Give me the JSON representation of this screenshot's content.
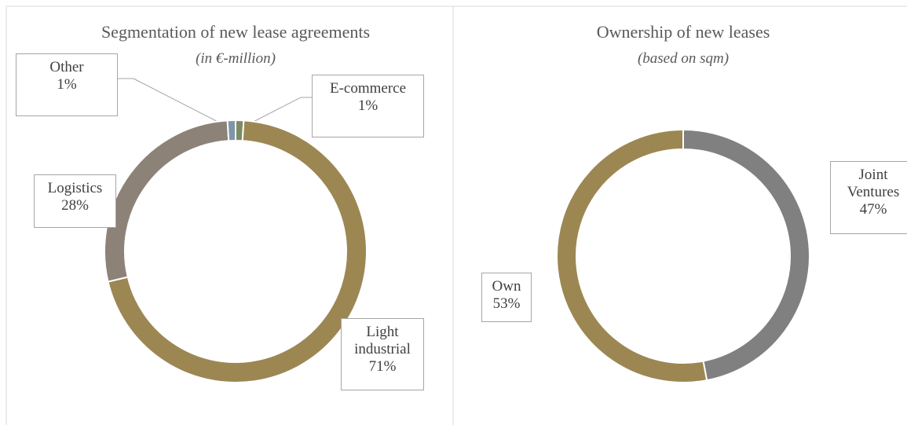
{
  "chart_data": [
    {
      "type": "donut",
      "title": "Segmentation of new lease agreements",
      "subtitle": "(in €-million)",
      "categories": [
        "E-commerce",
        "Light industrial",
        "Logistics",
        "Other"
      ],
      "values": [
        1,
        71,
        28,
        1
      ],
      "value_labels": [
        "1%",
        "71%",
        "28%",
        "1%"
      ],
      "colors": [
        "#7b8c63",
        "#9c8753",
        "#8c8277",
        "#7f95a8"
      ]
    },
    {
      "type": "donut",
      "title": "Ownership of new leases",
      "subtitle": "(based on sqm)",
      "categories": [
        "Joint Ventures",
        "Own"
      ],
      "values": [
        47,
        53
      ],
      "value_labels": [
        "47%",
        "53%"
      ],
      "colors": [
        "#808080",
        "#9c8753"
      ]
    }
  ]
}
